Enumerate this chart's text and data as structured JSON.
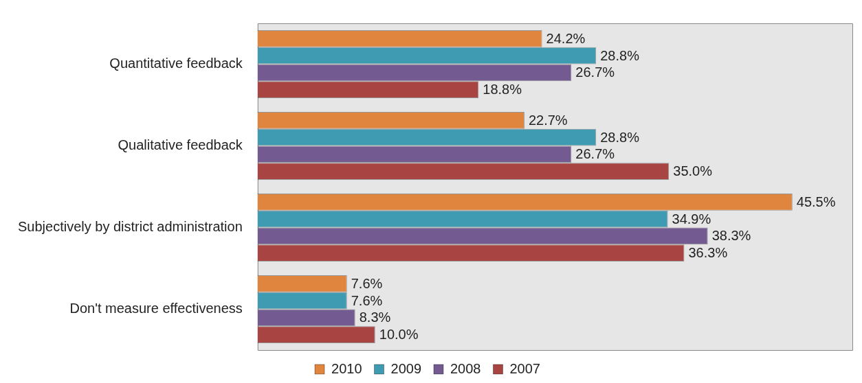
{
  "chart_data": {
    "type": "bar",
    "orientation": "horizontal",
    "categories": [
      "Quantitative feedback",
      "Qualitative feedback",
      "Subjectively by district administration",
      "Don't measure effectiveness"
    ],
    "series": [
      {
        "name": "2010",
        "color": "#e0853d",
        "values": [
          24.2,
          22.7,
          45.5,
          7.6
        ],
        "value_labels": [
          "24.2%",
          "22.7%",
          "45.5%",
          "7.6%"
        ]
      },
      {
        "name": "2009",
        "color": "#3e9bb1",
        "values": [
          28.8,
          28.8,
          34.9,
          7.6
        ],
        "value_labels": [
          "28.8%",
          "28.8%",
          "34.9%",
          "7.6%"
        ]
      },
      {
        "name": "2008",
        "color": "#735a90",
        "values": [
          26.7,
          26.7,
          38.3,
          8.3
        ],
        "value_labels": [
          "26.7%",
          "26.7%",
          "38.3%",
          "8.3%"
        ]
      },
      {
        "name": "2007",
        "color": "#a84543",
        "values": [
          18.8,
          35.0,
          36.3,
          10.0
        ],
        "value_labels": [
          "18.8%",
          "35.0%",
          "36.3%",
          "10.0%"
        ]
      }
    ],
    "xlim": [
      0,
      50.6
    ],
    "tick_labels": "y",
    "legend": "bottom"
  }
}
